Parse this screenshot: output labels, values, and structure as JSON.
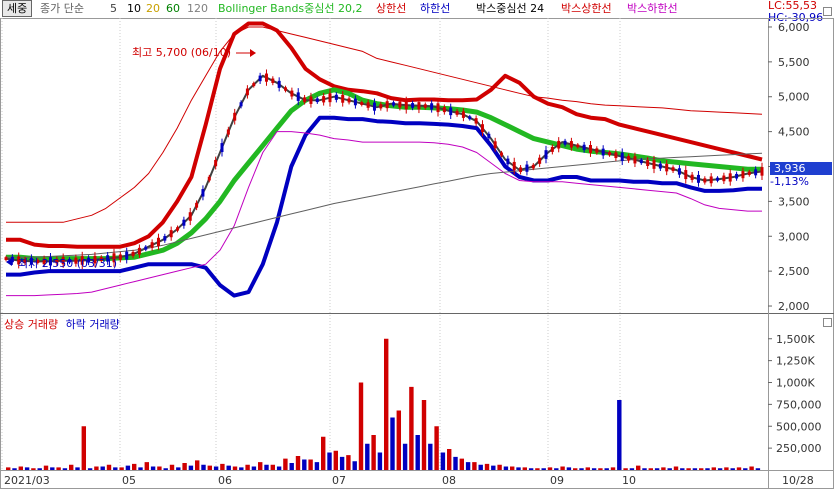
{
  "legend": {
    "sejung_button": "세중",
    "ma_prefix": "종가 단순",
    "ma_periods": [
      {
        "label": "5",
        "color": "#404040"
      },
      {
        "label": "10",
        "color": "#000000"
      },
      {
        "label": "20",
        "color": "#c8a000"
      },
      {
        "label": "60",
        "color": "#008000"
      },
      {
        "label": "120",
        "color": "#808080"
      }
    ],
    "bollinger": {
      "label": "Bollinger Bands중심선 20,2",
      "color": "#22b822"
    },
    "upper": {
      "label": "상한선",
      "color": "#d00000"
    },
    "lower": {
      "label": "하한선",
      "color": "#0000c0"
    },
    "box_center": {
      "label": "박스중심선 24",
      "color": "#000000"
    },
    "box_upper": {
      "label": "박스상한선",
      "color": "#d00000"
    },
    "box_lower": {
      "label": "박스하한선",
      "color": "#c000c0"
    }
  },
  "readout": {
    "lc": "LC:55,53",
    "hc": "HC:-30,96"
  },
  "price_tag": {
    "value": "3,936",
    "change": "-1,13%"
  },
  "annotations": {
    "high": "최고 5,700 (06/10)",
    "low": "최저 2,550 (03/31)"
  },
  "volume_legend": {
    "up": "상승 거래량",
    "down": "하락 거래량",
    "up_color": "#d00000",
    "down_color": "#0000c0"
  },
  "chart_data": [
    {
      "type": "line",
      "title": "",
      "y_ticks": [
        "6,000",
        "5,500",
        "5,000",
        "4,500",
        "4,000",
        "3,500",
        "3,000",
        "2,500",
        "2,000"
      ],
      "y_range": [
        1900,
        6100
      ],
      "x_labels": [
        "2021/03",
        "05",
        "06",
        "07",
        "08",
        "09",
        "10",
        "10/28"
      ],
      "series": [
        {
          "name": "상한선",
          "color": "#d00000",
          "values": [
            2950,
            2950,
            2880,
            2860,
            2860,
            2850,
            2850,
            2850,
            2850,
            2900,
            3000,
            3200,
            3500,
            3850,
            4600,
            5400,
            5900,
            6050,
            6050,
            5950,
            5700,
            5400,
            5250,
            5150,
            5100,
            5080,
            5050,
            4980,
            4950,
            4960,
            4960,
            4950,
            4950,
            4960,
            5100,
            5300,
            5200,
            5000,
            4900,
            4850,
            4750,
            4700,
            4680,
            4600,
            4550,
            4500,
            4450,
            4400,
            4350,
            4300,
            4250,
            4200,
            4150,
            4100
          ]
        },
        {
          "name": "하한선",
          "color": "#0000c0",
          "values": [
            2450,
            2450,
            2480,
            2500,
            2500,
            2500,
            2500,
            2500,
            2500,
            2550,
            2600,
            2600,
            2600,
            2600,
            2550,
            2300,
            2150,
            2200,
            2600,
            3200,
            4000,
            4450,
            4700,
            4700,
            4680,
            4680,
            4650,
            4640,
            4620,
            4620,
            4610,
            4600,
            4580,
            4550,
            4300,
            4000,
            3850,
            3800,
            3800,
            3850,
            3850,
            3800,
            3800,
            3800,
            3780,
            3780,
            3760,
            3760,
            3700,
            3650,
            3650,
            3660,
            3680,
            3680
          ]
        },
        {
          "name": "Bollinger Bands중심선 20,2",
          "color": "#22b822",
          "values": [
            2700,
            2700,
            2680,
            2680,
            2680,
            2680,
            2680,
            2680,
            2690,
            2700,
            2750,
            2800,
            2900,
            3050,
            3250,
            3500,
            3800,
            4050,
            4300,
            4550,
            4800,
            4950,
            5050,
            5100,
            5050,
            4950,
            4900,
            4870,
            4850,
            4850,
            4840,
            4830,
            4810,
            4780,
            4700,
            4600,
            4500,
            4400,
            4350,
            4300,
            4250,
            4220,
            4200,
            4180,
            4150,
            4120,
            4080,
            4060,
            4040,
            4020,
            4000,
            3980,
            3960,
            3960
          ]
        },
        {
          "name": "5",
          "color": "#404040",
          "values": [
            2680,
            2650,
            2640,
            2640,
            2650,
            2650,
            2660,
            2680,
            2700,
            2750,
            2850,
            2950,
            3100,
            3300,
            3700,
            4200,
            4700,
            5100,
            5300,
            5200,
            5050,
            4950,
            4950,
            5000,
            4950,
            4900,
            4850,
            4900,
            4880,
            4870,
            4860,
            4800,
            4750,
            4650,
            4400,
            4100,
            3950,
            4000,
            4200,
            4350,
            4300,
            4250,
            4200,
            4150,
            4100,
            4050,
            4000,
            3950,
            3850,
            3800,
            3820,
            3850,
            3900,
            3930
          ]
        },
        {
          "name": "박스상한선",
          "color": "#d00000",
          "values": [
            3200,
            3200,
            3200,
            3200,
            3200,
            3250,
            3300,
            3400,
            3550,
            3700,
            3900,
            4200,
            4550,
            4950,
            5300,
            5650,
            5900,
            6000,
            6000,
            5950,
            5900,
            5850,
            5800,
            5750,
            5700,
            5650,
            5550,
            5500,
            5450,
            5400,
            5350,
            5300,
            5250,
            5200,
            5150,
            5100,
            5050,
            5000,
            4980,
            4950,
            4930,
            4900,
            4880,
            4870,
            4860,
            4850,
            4840,
            4820,
            4800,
            4790,
            4780,
            4770,
            4760,
            4750
          ]
        },
        {
          "name": "박스하한선",
          "color": "#c000c0",
          "values": [
            2150,
            2150,
            2150,
            2160,
            2170,
            2180,
            2200,
            2250,
            2300,
            2350,
            2400,
            2450,
            2500,
            2550,
            2600,
            2800,
            3150,
            3700,
            4200,
            4500,
            4500,
            4480,
            4450,
            4400,
            4380,
            4350,
            4350,
            4350,
            4350,
            4350,
            4340,
            4320,
            4280,
            4200,
            4050,
            3900,
            3800,
            3780,
            3780,
            3780,
            3760,
            3740,
            3720,
            3700,
            3680,
            3660,
            3640,
            3620,
            3540,
            3450,
            3400,
            3380,
            3360,
            3360
          ]
        },
        {
          "name": "120",
          "color": "#606060",
          "values": [
            2700,
            2700,
            2700,
            2710,
            2720,
            2730,
            2740,
            2760,
            2780,
            2800,
            2830,
            2870,
            2920,
            2970,
            3020,
            3070,
            3120,
            3170,
            3220,
            3270,
            3320,
            3370,
            3420,
            3470,
            3510,
            3550,
            3590,
            3630,
            3670,
            3710,
            3750,
            3790,
            3830,
            3870,
            3900,
            3920,
            3940,
            3960,
            3980,
            4000,
            4020,
            4040,
            4060,
            4080,
            4100,
            4110,
            4120,
            4130,
            4140,
            4150,
            4160,
            4170,
            4180,
            4190
          ]
        }
      ]
    },
    {
      "type": "bar",
      "title": "",
      "y_ticks": [
        "1,500K",
        "1,250K",
        "1,000K",
        "750,000",
        "500,000",
        "250,000"
      ],
      "y_range": [
        0,
        1600000
      ],
      "series": [
        {
          "name": "상승 거래량",
          "color": "#d00000",
          "values": [
            30000,
            40000,
            20000,
            50000,
            30000,
            60000,
            500000,
            40000,
            60000,
            30000,
            70000,
            90000,
            40000,
            60000,
            80000,
            110000,
            50000,
            70000,
            40000,
            60000,
            90000,
            60000,
            130000,
            160000,
            120000,
            380000,
            220000,
            170000,
            1000000,
            400000,
            1500000,
            680000,
            950000,
            800000,
            500000,
            240000,
            130000,
            90000,
            70000,
            60000,
            40000,
            30000,
            20000,
            30000,
            40000,
            20000,
            30000,
            20000,
            30000,
            20000,
            50000,
            20000,
            30000,
            40000,
            20000,
            20000,
            30000,
            30000,
            30000,
            40000
          ]
        },
        {
          "name": "하락 거래량",
          "color": "#0000c0",
          "values": [
            20000,
            30000,
            20000,
            30000,
            20000,
            30000,
            20000,
            40000,
            30000,
            50000,
            30000,
            40000,
            20000,
            30000,
            50000,
            60000,
            40000,
            50000,
            30000,
            40000,
            60000,
            40000,
            80000,
            120000,
            90000,
            200000,
            150000,
            100000,
            300000,
            200000,
            600000,
            300000,
            400000,
            300000,
            200000,
            150000,
            90000,
            60000,
            50000,
            40000,
            30000,
            20000,
            20000,
            20000,
            30000,
            20000,
            20000,
            20000,
            800000,
            20000,
            20000,
            20000,
            20000,
            20000,
            20000,
            20000,
            20000,
            20000,
            20000,
            20000
          ]
        }
      ]
    }
  ]
}
